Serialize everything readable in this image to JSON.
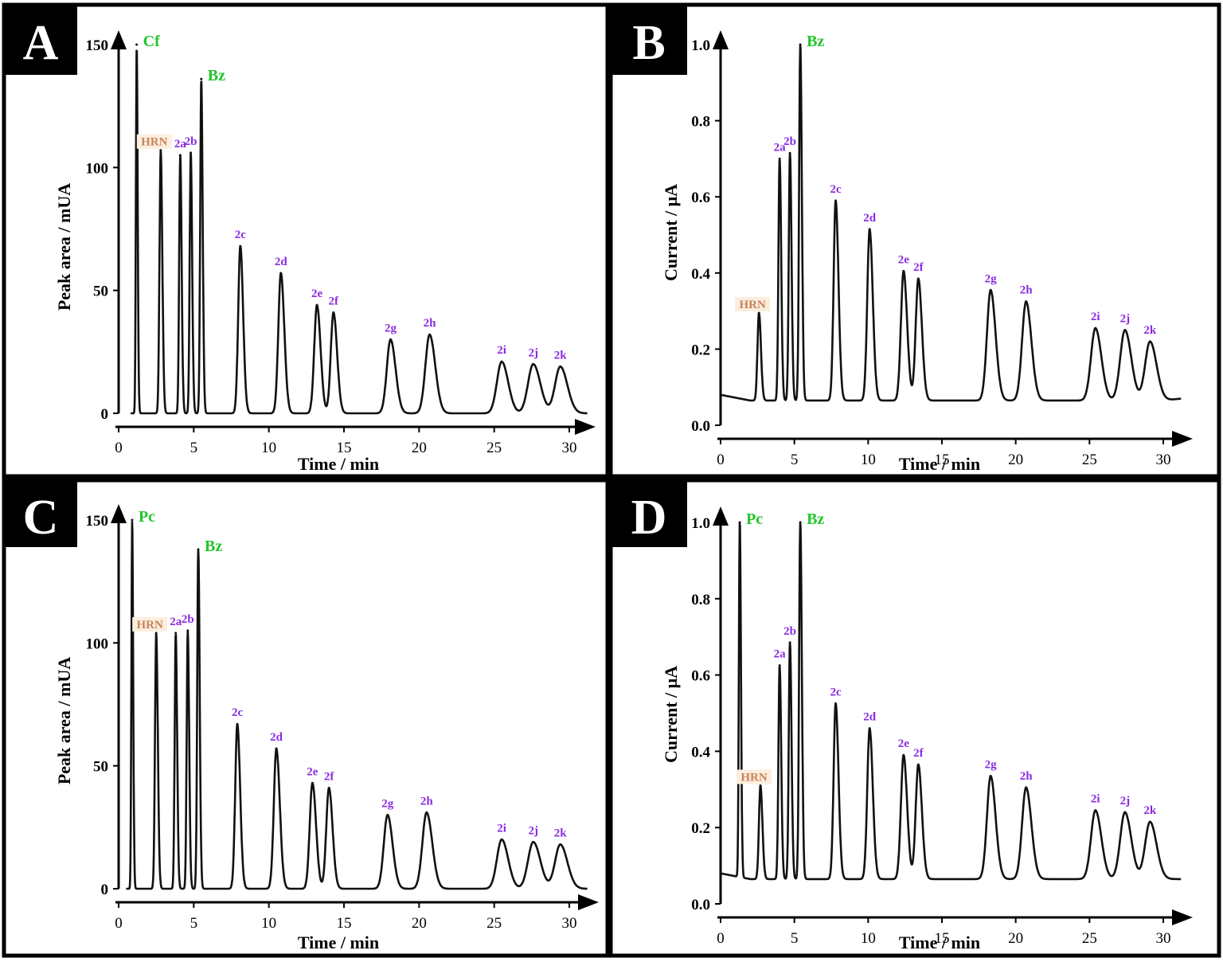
{
  "figure": {
    "colors": {
      "compound_label": "#22c52a",
      "analyte_label": "#8a2be2",
      "reference_label": "#c8845a",
      "reference_bg": "#fbeede",
      "trace": "#111111",
      "badge_bg": "#000000",
      "badge_text": "#ffffff"
    }
  },
  "chart_data": [
    {
      "panel": "A",
      "type": "line",
      "xlabel": "Time / min",
      "ylabel": "Peak area / mUA",
      "xlim": [
        0,
        31
      ],
      "ylim": [
        0,
        150
      ],
      "xticks": [
        "0",
        "5",
        "10",
        "15",
        "20",
        "25",
        "30"
      ],
      "xtick_values": [
        0,
        5,
        10,
        15,
        20,
        25,
        30
      ],
      "yticks": [
        "0",
        "50",
        "100",
        "150"
      ],
      "ytick_values": [
        0,
        50,
        100,
        150
      ],
      "baseline": 0,
      "end_value": 0,
      "start_t": 0.8,
      "peaks": [
        {
          "label": "Cf",
          "t": 1.2,
          "value": 150,
          "kind": "compound",
          "w": 0.05
        },
        {
          "label": "HRN",
          "t": 2.8,
          "value": 107,
          "kind": "reference",
          "w": 0.08
        },
        {
          "label": "2a",
          "t": 4.1,
          "value": 105,
          "kind": "analyte",
          "w": 0.07
        },
        {
          "label": "2b",
          "t": 4.8,
          "value": 106,
          "kind": "analyte",
          "w": 0.07
        },
        {
          "label": "Bz",
          "t": 5.5,
          "value": 136,
          "kind": "compound",
          "w": 0.07
        },
        {
          "label": "2c",
          "t": 8.1,
          "value": 68,
          "kind": "analyte",
          "w": 0.14
        },
        {
          "label": "2d",
          "t": 10.8,
          "value": 57,
          "kind": "analyte",
          "w": 0.17
        },
        {
          "label": "2e",
          "t": 13.2,
          "value": 44,
          "kind": "analyte",
          "w": 0.18
        },
        {
          "label": "2f",
          "t": 14.3,
          "value": 41,
          "kind": "analyte",
          "w": 0.18
        },
        {
          "label": "2g",
          "t": 18.1,
          "value": 30,
          "kind": "analyte",
          "w": 0.25
        },
        {
          "label": "2h",
          "t": 20.7,
          "value": 32,
          "kind": "analyte",
          "w": 0.28
        },
        {
          "label": "2i",
          "t": 25.5,
          "value": 21,
          "kind": "analyte",
          "w": 0.32
        },
        {
          "label": "2j",
          "t": 27.6,
          "value": 20,
          "kind": "analyte",
          "w": 0.35
        },
        {
          "label": "2k",
          "t": 29.4,
          "value": 19,
          "kind": "analyte",
          "w": 0.35
        }
      ]
    },
    {
      "panel": "B",
      "type": "line",
      "xlabel": "Time / min",
      "ylabel": "Current / μA",
      "xlim": [
        0,
        31
      ],
      "ylim": [
        0,
        1.0
      ],
      "xticks": [
        "0",
        "5",
        "10",
        "15",
        "20",
        "25",
        "30"
      ],
      "xtick_values": [
        0,
        5,
        10,
        15,
        20,
        25,
        30
      ],
      "yticks": [
        "0.0",
        "0.2",
        "0.4",
        "0.6",
        "0.8",
        "1.0"
      ],
      "ytick_values": [
        0,
        0.2,
        0.4,
        0.6,
        0.8,
        1.0
      ],
      "baseline": 0.065,
      "start_value": 0.08,
      "end_value": 0.07,
      "start_t": 0,
      "peaks": [
        {
          "label": "HRN",
          "t": 2.6,
          "value": 0.295,
          "kind": "reference",
          "w": 0.1
        },
        {
          "label": "2a",
          "t": 4.0,
          "value": 0.7,
          "kind": "analyte",
          "w": 0.08
        },
        {
          "label": "2b",
          "t": 4.7,
          "value": 0.715,
          "kind": "analyte",
          "w": 0.08
        },
        {
          "label": "Bz",
          "t": 5.4,
          "value": 1.0,
          "kind": "compound",
          "w": 0.08
        },
        {
          "label": "2c",
          "t": 7.8,
          "value": 0.59,
          "kind": "analyte",
          "w": 0.14
        },
        {
          "label": "2d",
          "t": 10.1,
          "value": 0.515,
          "kind": "analyte",
          "w": 0.16
        },
        {
          "label": "2e",
          "t": 12.4,
          "value": 0.405,
          "kind": "analyte",
          "w": 0.18
        },
        {
          "label": "2f",
          "t": 13.4,
          "value": 0.385,
          "kind": "analyte",
          "w": 0.18
        },
        {
          "label": "2g",
          "t": 18.3,
          "value": 0.355,
          "kind": "analyte",
          "w": 0.25
        },
        {
          "label": "2h",
          "t": 20.7,
          "value": 0.325,
          "kind": "analyte",
          "w": 0.27
        },
        {
          "label": "2i",
          "t": 25.4,
          "value": 0.255,
          "kind": "analyte",
          "w": 0.3
        },
        {
          "label": "2j",
          "t": 27.4,
          "value": 0.25,
          "kind": "analyte",
          "w": 0.32
        },
        {
          "label": "2k",
          "t": 29.1,
          "value": 0.22,
          "kind": "analyte",
          "w": 0.33
        }
      ]
    },
    {
      "panel": "C",
      "type": "line",
      "xlabel": "Time / min",
      "ylabel": "Peak area / mUA",
      "xlim": [
        0,
        31
      ],
      "ylim": [
        0,
        150
      ],
      "xticks": [
        "0",
        "5",
        "10",
        "15",
        "20",
        "25",
        "30"
      ],
      "xtick_values": [
        0,
        5,
        10,
        15,
        20,
        25,
        30
      ],
      "yticks": [
        "0",
        "50",
        "100",
        "150"
      ],
      "ytick_values": [
        0,
        50,
        100,
        150
      ],
      "baseline": 0,
      "end_value": 0,
      "start_t": 0.5,
      "peaks": [
        {
          "label": "Pc",
          "t": 0.9,
          "value": 150,
          "kind": "compound",
          "w": 0.05
        },
        {
          "label": "HRN",
          "t": 2.5,
          "value": 104,
          "kind": "reference",
          "w": 0.08
        },
        {
          "label": "2a",
          "t": 3.8,
          "value": 104,
          "kind": "analyte",
          "w": 0.07
        },
        {
          "label": "2b",
          "t": 4.6,
          "value": 105,
          "kind": "analyte",
          "w": 0.07
        },
        {
          "label": "Bz",
          "t": 5.3,
          "value": 138,
          "kind": "compound",
          "w": 0.07
        },
        {
          "label": "2c",
          "t": 7.9,
          "value": 67,
          "kind": "analyte",
          "w": 0.14
        },
        {
          "label": "2d",
          "t": 10.5,
          "value": 57,
          "kind": "analyte",
          "w": 0.17
        },
        {
          "label": "2e",
          "t": 12.9,
          "value": 43,
          "kind": "analyte",
          "w": 0.18
        },
        {
          "label": "2f",
          "t": 14.0,
          "value": 41,
          "kind": "analyte",
          "w": 0.18
        },
        {
          "label": "2g",
          "t": 17.9,
          "value": 30,
          "kind": "analyte",
          "w": 0.25
        },
        {
          "label": "2h",
          "t": 20.5,
          "value": 31,
          "kind": "analyte",
          "w": 0.28
        },
        {
          "label": "2i",
          "t": 25.5,
          "value": 20,
          "kind": "analyte",
          "w": 0.32
        },
        {
          "label": "2j",
          "t": 27.6,
          "value": 19,
          "kind": "analyte",
          "w": 0.35
        },
        {
          "label": "2k",
          "t": 29.4,
          "value": 18,
          "kind": "analyte",
          "w": 0.35
        }
      ]
    },
    {
      "panel": "D",
      "type": "line",
      "xlabel": "Time / min",
      "ylabel": "Current / μA",
      "xlim": [
        0,
        31
      ],
      "ylim": [
        0,
        1.0
      ],
      "xticks": [
        "0",
        "5",
        "10",
        "15",
        "20",
        "25",
        "30"
      ],
      "xtick_values": [
        0,
        5,
        10,
        15,
        20,
        25,
        30
      ],
      "yticks": [
        "0.0",
        "0.2",
        "0.4",
        "0.6",
        "0.8",
        "1.0"
      ],
      "ytick_values": [
        0,
        0.2,
        0.4,
        0.6,
        0.8,
        1.0
      ],
      "baseline": 0.065,
      "start_value": 0.08,
      "end_value": 0.065,
      "start_t": 0,
      "peaks": [
        {
          "label": "Pc",
          "t": 1.3,
          "value": 1.0,
          "kind": "compound",
          "w": 0.06
        },
        {
          "label": "HRN",
          "t": 2.7,
          "value": 0.31,
          "kind": "reference",
          "w": 0.1
        },
        {
          "label": "2a",
          "t": 4.0,
          "value": 0.625,
          "kind": "analyte",
          "w": 0.08
        },
        {
          "label": "2b",
          "t": 4.7,
          "value": 0.685,
          "kind": "analyte",
          "w": 0.08
        },
        {
          "label": "Bz",
          "t": 5.4,
          "value": 1.0,
          "kind": "compound",
          "w": 0.08
        },
        {
          "label": "2c",
          "t": 7.8,
          "value": 0.525,
          "kind": "analyte",
          "w": 0.14
        },
        {
          "label": "2d",
          "t": 10.1,
          "value": 0.46,
          "kind": "analyte",
          "w": 0.16
        },
        {
          "label": "2e",
          "t": 12.4,
          "value": 0.39,
          "kind": "analyte",
          "w": 0.18
        },
        {
          "label": "2f",
          "t": 13.4,
          "value": 0.365,
          "kind": "analyte",
          "w": 0.18
        },
        {
          "label": "2g",
          "t": 18.3,
          "value": 0.335,
          "kind": "analyte",
          "w": 0.25
        },
        {
          "label": "2h",
          "t": 20.7,
          "value": 0.305,
          "kind": "analyte",
          "w": 0.27
        },
        {
          "label": "2i",
          "t": 25.4,
          "value": 0.245,
          "kind": "analyte",
          "w": 0.3
        },
        {
          "label": "2j",
          "t": 27.4,
          "value": 0.24,
          "kind": "analyte",
          "w": 0.32
        },
        {
          "label": "2k",
          "t": 29.1,
          "value": 0.215,
          "kind": "analyte",
          "w": 0.33
        }
      ]
    }
  ]
}
